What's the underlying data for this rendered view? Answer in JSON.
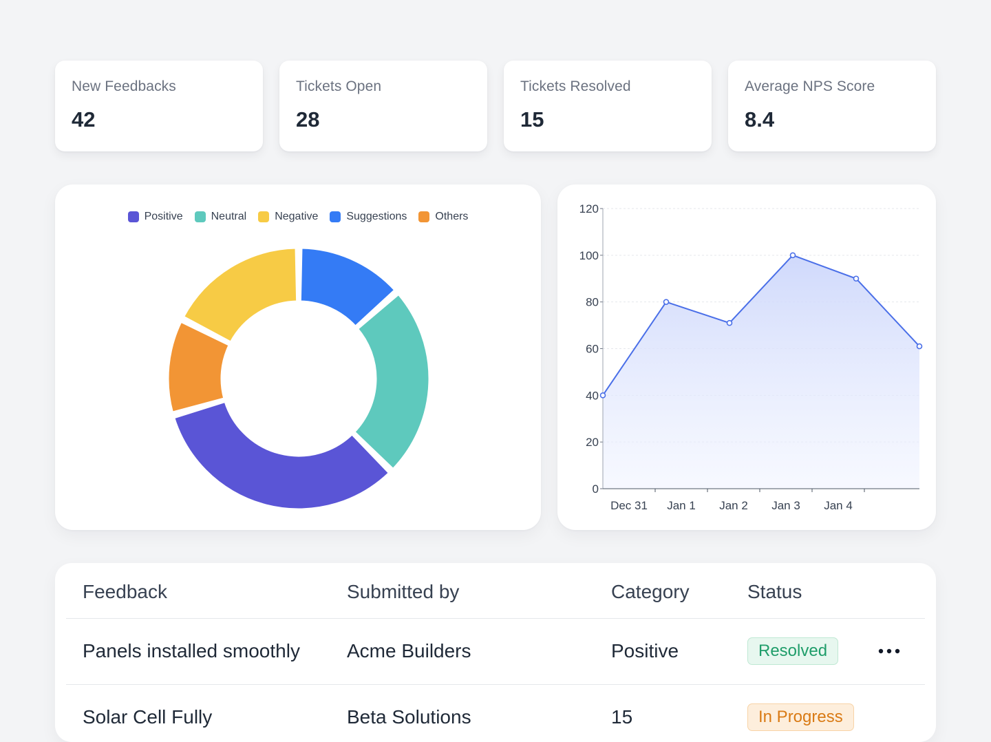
{
  "stats": [
    {
      "label": "New Feedbacks",
      "value": "42"
    },
    {
      "label": "Tickets Open",
      "value": "28"
    },
    {
      "label": "Tickets Resolved",
      "value": "15"
    },
    {
      "label": "Average NPS Score",
      "value": "8.4"
    }
  ],
  "colors": {
    "positive": "#5a55d6",
    "neutral": "#5ec9bd",
    "negative": "#f7cb45",
    "suggestions": "#347bf5",
    "others": "#f29535",
    "line": "#4a6fe8",
    "resolved_text": "#1f9d6a",
    "resolved_bg": "#e7f7ef",
    "resolved_border": "#bfe8d3",
    "progress_text": "#d97a14",
    "progress_bg": "#fdeedc",
    "progress_border": "#f8d3a6"
  },
  "chart_data": [
    {
      "type": "pie",
      "variant": "donut",
      "title": "",
      "legend": [
        "Positive",
        "Neutral",
        "Negative",
        "Suggestions",
        "Others"
      ],
      "legend_position": "top",
      "slices": [
        {
          "name": "Suggestions",
          "value": 13.5
        },
        {
          "name": "Neutral",
          "value": 24
        },
        {
          "name": "Positive",
          "value": 33
        },
        {
          "name": "Others",
          "value": 12
        },
        {
          "name": "Negative",
          "value": 17.5
        }
      ]
    },
    {
      "type": "area",
      "title": "",
      "categories": [
        "Dec 31",
        "Jan 1",
        "Jan 2",
        "Jan 3",
        "Jan 4"
      ],
      "x": [
        0,
        1,
        2,
        3,
        4,
        5
      ],
      "values": [
        40,
        80,
        71,
        100,
        90,
        61
      ],
      "ylim": [
        0,
        120
      ],
      "yticks": [
        0,
        20,
        40,
        60,
        80,
        100,
        120
      ],
      "grid": true
    }
  ],
  "table": {
    "headers": [
      "Feedback",
      "Submitted by",
      "Category",
      "Status"
    ],
    "rows": [
      {
        "feedback": "Panels installed smoothly",
        "submitted_by": "Acme Builders",
        "category": "Positive",
        "status": "Resolved",
        "status_kind": "resolved"
      },
      {
        "feedback": "Solar Cell Fully",
        "submitted_by": "Beta Solutions",
        "category": "15",
        "status": "In Progress",
        "status_kind": "progress"
      }
    ]
  },
  "icons": {
    "row_actions": "more-horizontal-icon"
  }
}
